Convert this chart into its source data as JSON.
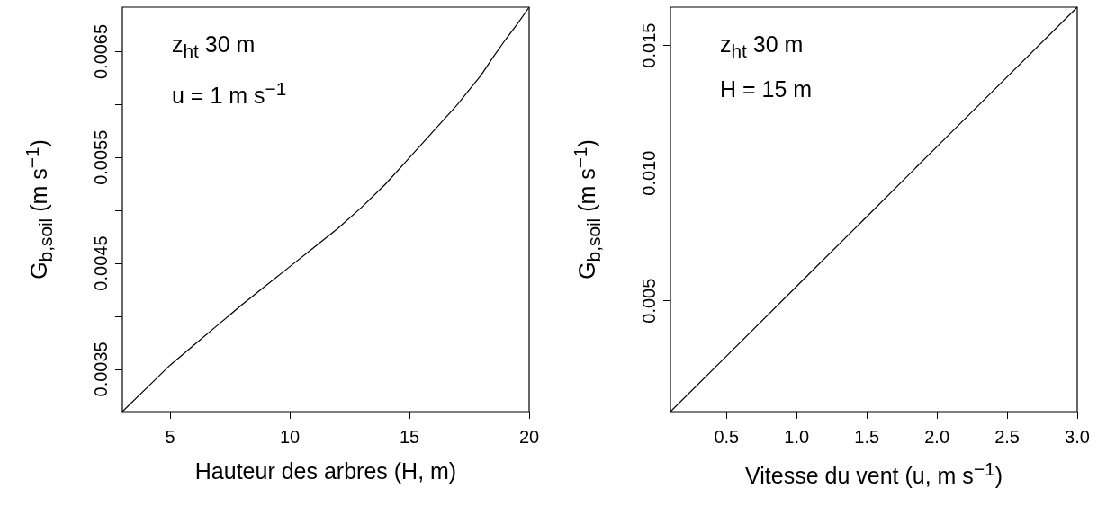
{
  "chart_data": [
    {
      "type": "line",
      "xlabel": "Hauteur des arbres (H, m)",
      "ylabel": "G$_{b,soil}$ (m s$^{−1}$)",
      "annotations": [
        "z$_{ht}$ 30 m",
        "u = 1 m s$^{−1}$"
      ],
      "x": [
        3,
        4,
        5,
        6,
        7,
        8,
        9,
        10,
        11,
        12,
        13,
        14,
        15,
        16,
        17,
        18,
        18.5,
        19,
        19.5,
        20
      ],
      "series": [
        {
          "color": "#000000",
          "values": [
            0.0031,
            0.00332,
            0.00354,
            0.00373,
            0.00392,
            0.00411,
            0.00429,
            0.00447,
            0.00465,
            0.00483,
            0.00503,
            0.00525,
            0.0055,
            0.00575,
            0.006,
            0.00628,
            0.00645,
            0.00661,
            0.00676,
            0.00692
          ]
        }
      ],
      "xlim": [
        3,
        20
      ],
      "ylim": [
        0.0031,
        0.00692
      ],
      "xticks": [
        5,
        10,
        15,
        20
      ],
      "yticks": [
        0.0035,
        {
          "value": 0.004,
          "label": null
        },
        0.0045,
        {
          "value": 0.005,
          "label": null
        },
        0.0055,
        {
          "value": 0.006,
          "label": null
        },
        0.0065
      ]
    },
    {
      "type": "line",
      "xlabel": "Vitesse du vent (u, m s$^{−1}$)",
      "ylabel": "G$_{b,soil}$ (m s$^{−1}$)",
      "annotations": [
        "z$_{ht}$ 30 m",
        "H = 15 m"
      ],
      "x": [
        0.1,
        0.5,
        1,
        1.5,
        2,
        2.5,
        3
      ],
      "series": [
        {
          "color": "#000000",
          "values": [
            0.00066,
            0.00284,
            0.00557,
            0.0083,
            0.01104,
            0.01377,
            0.0165
          ]
        }
      ],
      "xlim": [
        0.1,
        3
      ],
      "ylim": [
        0.00066,
        0.0165
      ],
      "xticks": [
        {
          "value": 0.5,
          "label": "0.5"
        },
        {
          "value": 1,
          "label": "1.0"
        },
        {
          "value": 1.5,
          "label": "1.5"
        },
        {
          "value": 2,
          "label": "2.0"
        },
        {
          "value": 2.5,
          "label": "2.5"
        },
        {
          "value": 3,
          "label": "3.0"
        }
      ],
      "yticks": [
        {
          "value": 0.005,
          "label": "0.005"
        },
        {
          "value": 0.01,
          "label": "0.010"
        },
        {
          "value": 0.015,
          "label": "0.015"
        }
      ]
    }
  ]
}
